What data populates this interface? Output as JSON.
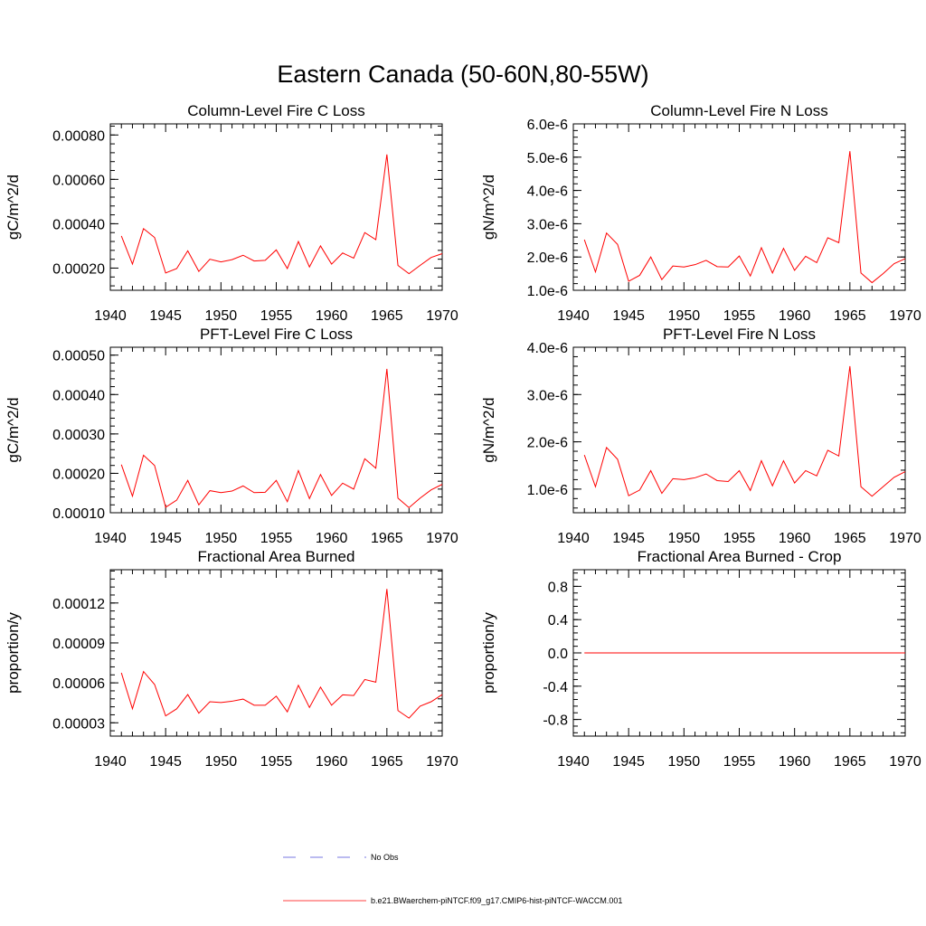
{
  "figure": {
    "title": "Eastern Canada (50-60N,80-55W)"
  },
  "legend": {
    "entries": [
      {
        "label": "No Obs",
        "color": "#4b4bd8",
        "dash": "dashed"
      },
      {
        "label": "b.e21.BWaerchem-piNTCF.f09_g17.CMIP6-hist-piNTCF-WACCM.001",
        "color": "#ff0000",
        "dash": "solid"
      }
    ]
  },
  "colors": {
    "series": "#ff0000",
    "axes": "#000000",
    "no_obs": "#4b4bd8"
  },
  "chart_data": [
    {
      "type": "line",
      "title": "Column-Level Fire C Loss",
      "ylabel": "gC/m^2/d",
      "xlim": [
        1940,
        1970
      ],
      "ylim": [
        0.0001,
        0.00085
      ],
      "xticks": [
        1940,
        1945,
        1950,
        1955,
        1960,
        1965,
        1970
      ],
      "xtick_labels": [
        "1940",
        "1945",
        "1950",
        "1955",
        "1960",
        "1965",
        "1970"
      ],
      "yticks": [
        0.0002,
        0.0004,
        0.0006,
        0.0008
      ],
      "ytick_labels": [
        "0.00020",
        "0.00040",
        "0.00060",
        "0.00080"
      ],
      "x": [
        1941,
        1942,
        1943,
        1944,
        1945,
        1946,
        1947,
        1948,
        1949,
        1950,
        1951,
        1952,
        1953,
        1954,
        1955,
        1956,
        1957,
        1958,
        1959,
        1960,
        1961,
        1962,
        1963,
        1964,
        1965,
        1966,
        1967,
        1968,
        1969,
        1970
      ],
      "series": [
        {
          "color": "#ff0000",
          "values": [
            0.000345,
            0.000218,
            0.000378,
            0.000338,
            0.000178,
            0.000198,
            0.000278,
            0.000185,
            0.00024,
            0.000228,
            0.000238,
            0.000258,
            0.000232,
            0.000235,
            0.000282,
            0.000198,
            0.00032,
            0.000205,
            0.0003,
            0.000218,
            0.000268,
            0.000245,
            0.00036,
            0.000328,
            0.000712,
            0.000212,
            0.000175,
            0.000212,
            0.000248,
            0.000265
          ]
        }
      ]
    },
    {
      "type": "line",
      "title": "Column-Level Fire N Loss",
      "ylabel": "gN/m^2/d",
      "xlim": [
        1940,
        1970
      ],
      "ylim": [
        1e-06,
        6e-06
      ],
      "xticks": [
        1940,
        1945,
        1950,
        1955,
        1960,
        1965,
        1970
      ],
      "xtick_labels": [
        "1940",
        "1945",
        "1950",
        "1955",
        "1960",
        "1965",
        "1970"
      ],
      "yticks": [
        1e-06,
        2e-06,
        3e-06,
        4e-06,
        5e-06,
        6e-06
      ],
      "ytick_labels": [
        "1.0e-6",
        "2.0e-6",
        "3.0e-6",
        "4.0e-6",
        "5.0e-6",
        "6.0e-6"
      ],
      "x": [
        1941,
        1942,
        1943,
        1944,
        1945,
        1946,
        1947,
        1948,
        1949,
        1950,
        1951,
        1952,
        1953,
        1954,
        1955,
        1956,
        1957,
        1958,
        1959,
        1960,
        1961,
        1962,
        1963,
        1964,
        1965,
        1966,
        1967,
        1968,
        1969,
        1970
      ],
      "series": [
        {
          "color": "#ff0000",
          "values": [
            2.52e-06,
            1.55e-06,
            2.72e-06,
            2.38e-06,
            1.27e-06,
            1.45e-06,
            2e-06,
            1.32e-06,
            1.73e-06,
            1.7e-06,
            1.77e-06,
            1.9e-06,
            1.71e-06,
            1.7e-06,
            2.03e-06,
            1.43e-06,
            2.28e-06,
            1.52e-06,
            2.26e-06,
            1.6e-06,
            2.02e-06,
            1.83e-06,
            2.58e-06,
            2.43e-06,
            5.18e-06,
            1.52e-06,
            1.23e-06,
            1.5e-06,
            1.8e-06,
            1.95e-06
          ]
        }
      ]
    },
    {
      "type": "line",
      "title": "PFT-Level Fire C Loss",
      "ylabel": "gC/m^2/d",
      "xlim": [
        1940,
        1970
      ],
      "ylim": [
        0.0001,
        0.00052
      ],
      "xticks": [
        1940,
        1945,
        1950,
        1955,
        1960,
        1965,
        1970
      ],
      "xtick_labels": [
        "1940",
        "1945",
        "1950",
        "1955",
        "1960",
        "1965",
        "1970"
      ],
      "yticks": [
        0.0001,
        0.0002,
        0.0003,
        0.0004,
        0.0005
      ],
      "ytick_labels": [
        "0.00010",
        "0.00020",
        "0.00030",
        "0.00040",
        "0.00050"
      ],
      "x": [
        1941,
        1942,
        1943,
        1944,
        1945,
        1946,
        1947,
        1948,
        1949,
        1950,
        1951,
        1952,
        1953,
        1954,
        1955,
        1956,
        1957,
        1958,
        1959,
        1960,
        1961,
        1962,
        1963,
        1964,
        1965,
        1966,
        1967,
        1968,
        1969,
        1970
      ],
      "series": [
        {
          "color": "#ff0000",
          "values": [
            0.000222,
            0.000142,
            0.000246,
            0.00022,
            0.000114,
            0.000132,
            0.000182,
            0.00012,
            0.000156,
            0.000151,
            0.000155,
            0.000168,
            0.000151,
            0.000152,
            0.000182,
            0.000128,
            0.000207,
            0.000136,
            0.000197,
            0.000144,
            0.000175,
            0.00016,
            0.000237,
            0.000213,
            0.000465,
            0.000137,
            0.000113,
            0.000137,
            0.000158,
            0.000172
          ]
        }
      ]
    },
    {
      "type": "line",
      "title": "PFT-Level Fire N Loss",
      "ylabel": "gN/m^2/d",
      "xlim": [
        1940,
        1970
      ],
      "ylim": [
        5e-07,
        4e-06
      ],
      "xticks": [
        1940,
        1945,
        1950,
        1955,
        1960,
        1965,
        1970
      ],
      "xtick_labels": [
        "1940",
        "1945",
        "1950",
        "1955",
        "1960",
        "1965",
        "1970"
      ],
      "yticks": [
        1e-06,
        2e-06,
        3e-06,
        4e-06
      ],
      "ytick_labels": [
        "1.0e-6",
        "2.0e-6",
        "3.0e-6",
        "4.0e-6"
      ],
      "x": [
        1941,
        1942,
        1943,
        1944,
        1945,
        1946,
        1947,
        1948,
        1949,
        1950,
        1951,
        1952,
        1953,
        1954,
        1955,
        1956,
        1957,
        1958,
        1959,
        1960,
        1961,
        1962,
        1963,
        1964,
        1965,
        1966,
        1967,
        1968,
        1969,
        1970
      ],
      "series": [
        {
          "color": "#ff0000",
          "values": [
            1.72e-06,
            1.05e-06,
            1.88e-06,
            1.63e-06,
            8.6e-07,
            9.8e-07,
            1.39e-06,
            9.1e-07,
            1.22e-06,
            1.2e-06,
            1.24e-06,
            1.32e-06,
            1.18e-06,
            1.16e-06,
            1.39e-06,
            9.7e-07,
            1.6e-06,
            1.07e-06,
            1.6e-06,
            1.13e-06,
            1.39e-06,
            1.28e-06,
            1.82e-06,
            1.7e-06,
            3.6e-06,
            1.05e-06,
            8.5e-07,
            1.05e-06,
            1.25e-06,
            1.37e-06
          ]
        }
      ]
    },
    {
      "type": "line",
      "title": "Fractional Area Burned",
      "ylabel": "proportion/y",
      "xlim": [
        1940,
        1970
      ],
      "ylim": [
        2e-05,
        0.000145
      ],
      "xticks": [
        1940,
        1945,
        1950,
        1955,
        1960,
        1965,
        1970
      ],
      "xtick_labels": [
        "1940",
        "1945",
        "1950",
        "1955",
        "1960",
        "1965",
        "1970"
      ],
      "yticks": [
        3e-05,
        6e-05,
        9e-05,
        0.00012
      ],
      "ytick_labels": [
        "0.00003",
        "0.00006",
        "0.00009",
        "0.00012"
      ],
      "x": [
        1941,
        1942,
        1943,
        1944,
        1945,
        1946,
        1947,
        1948,
        1949,
        1950,
        1951,
        1952,
        1953,
        1954,
        1955,
        1956,
        1957,
        1958,
        1959,
        1960,
        1961,
        1962,
        1963,
        1964,
        1965,
        1966,
        1967,
        1968,
        1969,
        1970
      ],
      "series": [
        {
          "color": "#ff0000",
          "values": [
            6.75e-05,
            4.05e-05,
            6.85e-05,
            5.88e-05,
            3.52e-05,
            4.05e-05,
            5.12e-05,
            3.72e-05,
            4.58e-05,
            4.52e-05,
            4.62e-05,
            4.78e-05,
            4.32e-05,
            4.32e-05,
            5e-05,
            3.82e-05,
            5.82e-05,
            4.15e-05,
            5.68e-05,
            4.32e-05,
            5.1e-05,
            5.05e-05,
            6.25e-05,
            6.05e-05,
            0.0001305,
            3.92e-05,
            3.35e-05,
            4.25e-05,
            4.58e-05,
            5.12e-05
          ]
        }
      ]
    },
    {
      "type": "line",
      "title": "Fractional Area Burned - Crop",
      "ylabel": "proportion/y",
      "xlim": [
        1940,
        1970
      ],
      "ylim": [
        -1.0,
        1.0
      ],
      "xticks": [
        1940,
        1945,
        1950,
        1955,
        1960,
        1965,
        1970
      ],
      "xtick_labels": [
        "1940",
        "1945",
        "1950",
        "1955",
        "1960",
        "1965",
        "1970"
      ],
      "yticks": [
        -0.8,
        -0.4,
        0.0,
        0.4,
        0.8
      ],
      "ytick_labels": [
        "-0.8",
        "-0.4",
        "0.0",
        "0.4",
        "0.8"
      ],
      "x": [
        1941,
        1942,
        1943,
        1944,
        1945,
        1946,
        1947,
        1948,
        1949,
        1950,
        1951,
        1952,
        1953,
        1954,
        1955,
        1956,
        1957,
        1958,
        1959,
        1960,
        1961,
        1962,
        1963,
        1964,
        1965,
        1966,
        1967,
        1968,
        1969,
        1970
      ],
      "series": [
        {
          "color": "#ff0000",
          "values": [
            0,
            0,
            0,
            0,
            0,
            0,
            0,
            0,
            0,
            0,
            0,
            0,
            0,
            0,
            0,
            0,
            0,
            0,
            0,
            0,
            0,
            0,
            0,
            0,
            0,
            0,
            0,
            0,
            0,
            0
          ]
        }
      ]
    }
  ]
}
